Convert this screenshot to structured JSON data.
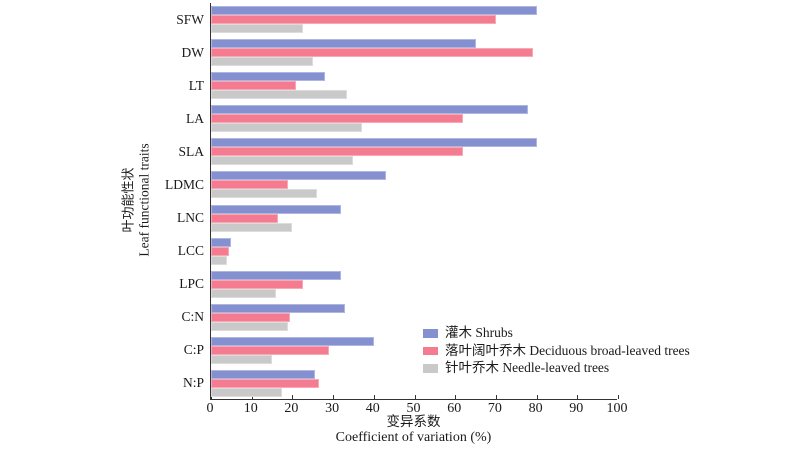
{
  "figure": {
    "background": "#ffffff",
    "axis_color": "#333333"
  },
  "chart_data": {
    "type": "bar",
    "orientation": "horizontal",
    "xlabel_zh": "变异系数",
    "xlabel_en": "Coefficient of variation (%)",
    "ylabel_zh": "叶功能性状",
    "ylabel_en": "Leaf functional traits",
    "xlim": [
      0,
      100
    ],
    "xticks": [
      0,
      10,
      20,
      30,
      40,
      50,
      60,
      70,
      80,
      90,
      100
    ],
    "grid": false,
    "legend_position": "inside lower right",
    "categories": [
      "SFW",
      "DW",
      "LT",
      "LA",
      "SLA",
      "LDMC",
      "LNC",
      "LCC",
      "LPC",
      "C:N",
      "C:P",
      "N:P"
    ],
    "series": [
      {
        "key": "shrubs",
        "name": "灌木 Shrubs",
        "color": "#8490cf",
        "values": [
          80,
          65,
          28,
          78,
          80,
          43,
          32,
          5,
          32,
          33,
          40,
          25.5
        ]
      },
      {
        "key": "deciduous-broad-leaved-trees",
        "name": "落叶阔叶乔木 Deciduous broad-leaved trees",
        "color": "#f57c90",
        "values": [
          70,
          79,
          21,
          62,
          62,
          19,
          16.5,
          4.5,
          22.5,
          19.5,
          29,
          26.5
        ]
      },
      {
        "key": "needle-leaved-trees",
        "name": "针叶乔木 Needle-leaved trees",
        "color": "#c9c9c9",
        "values": [
          22.5,
          25,
          33.5,
          37,
          35,
          26,
          20,
          4,
          16,
          19,
          15,
          17.5
        ]
      }
    ]
  }
}
